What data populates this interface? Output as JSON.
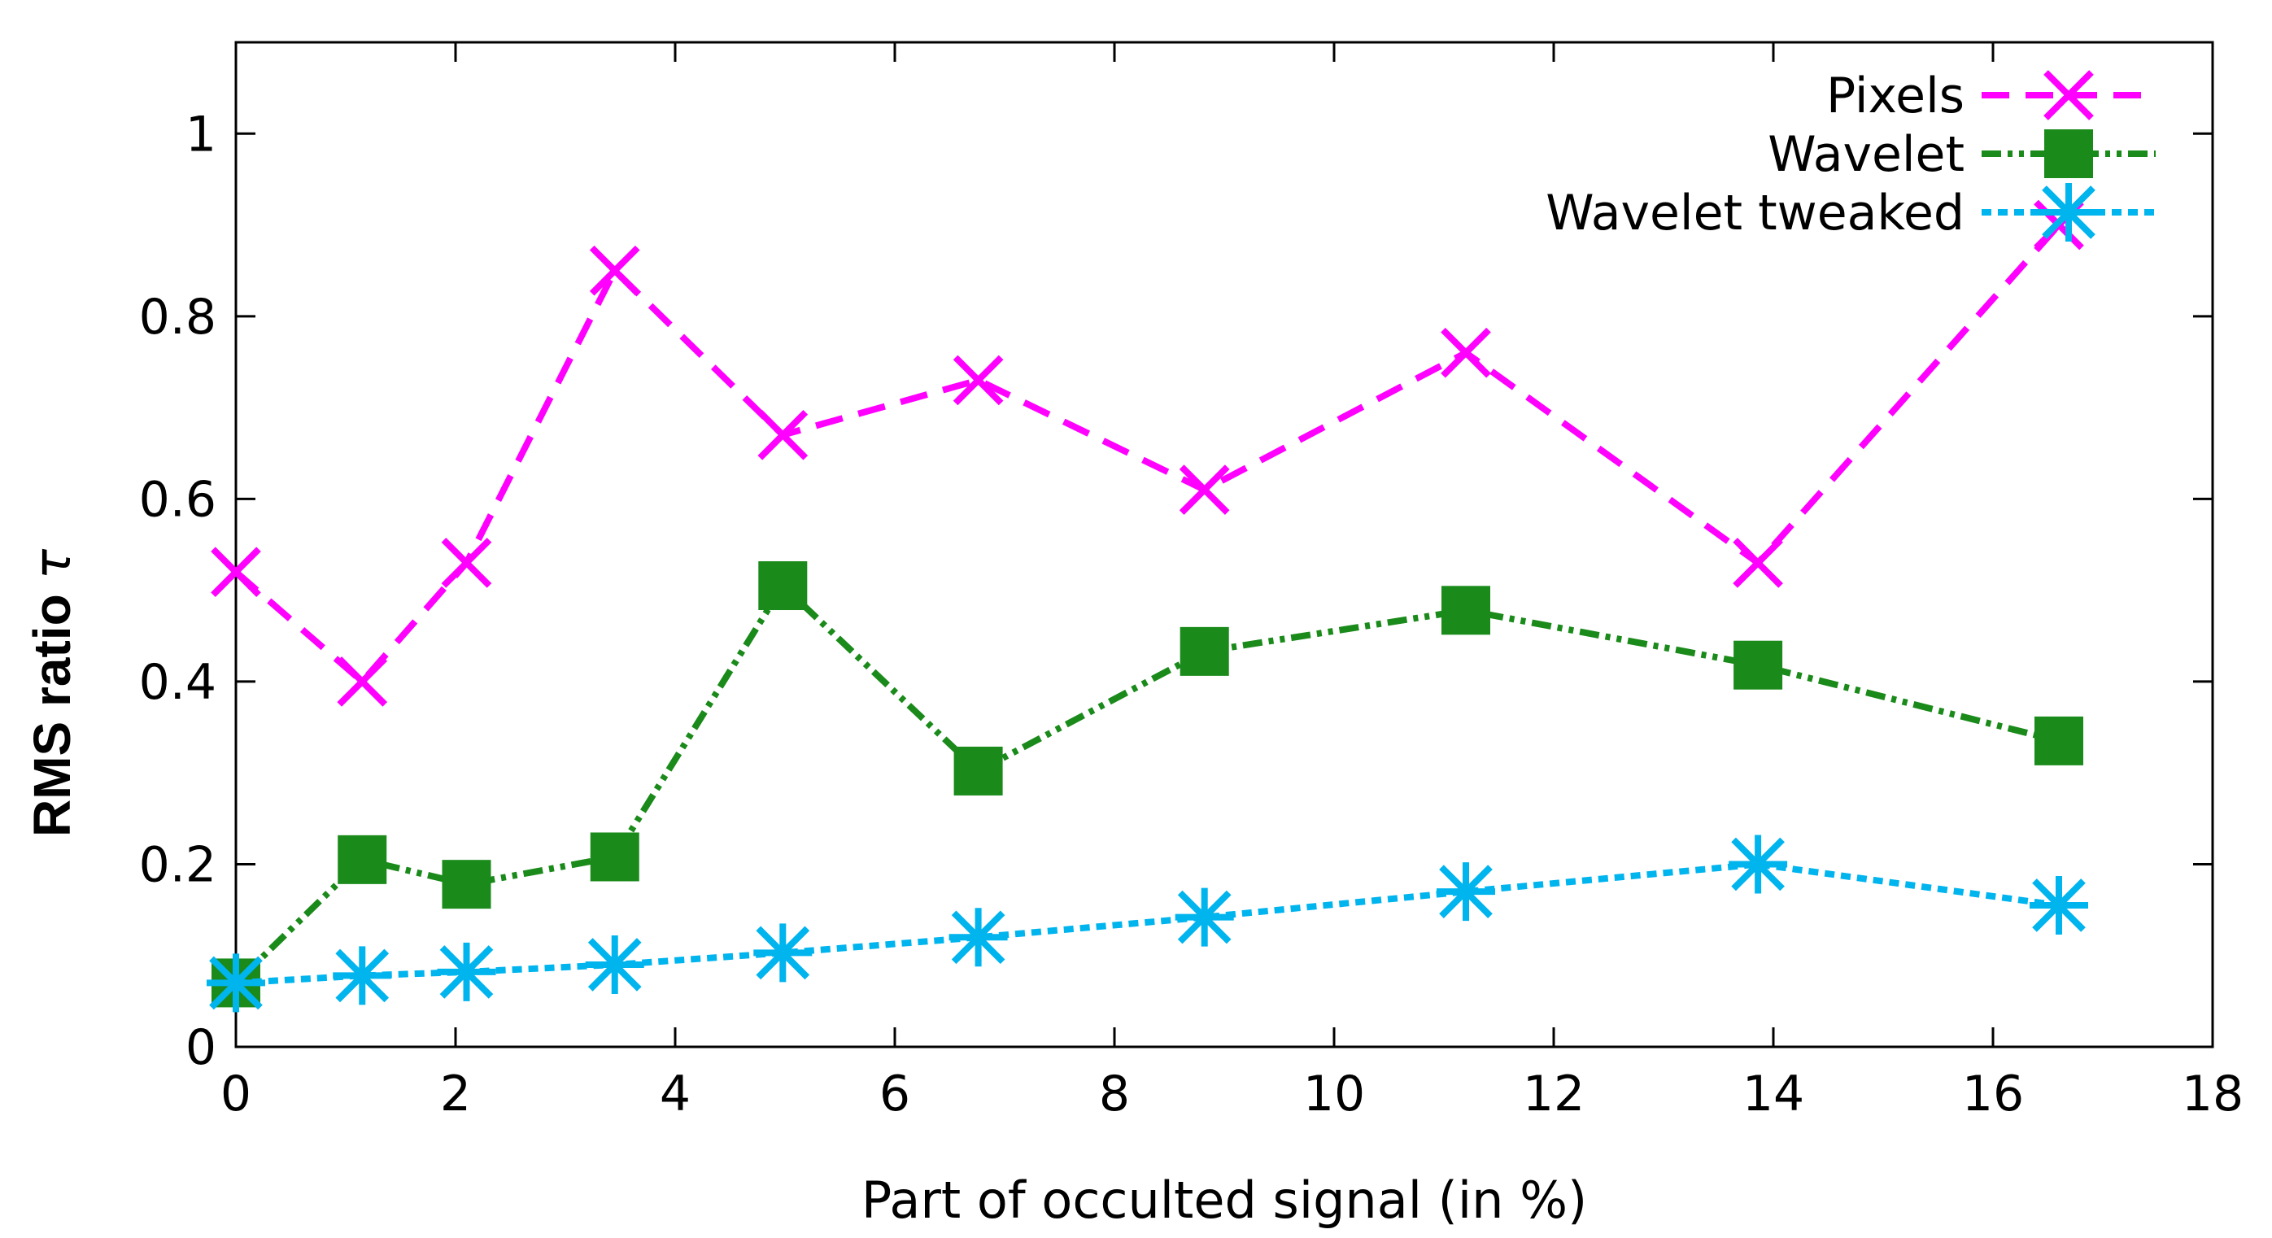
{
  "chart_data": {
    "type": "line",
    "title": "",
    "xlabel": "Part of occulted signal (in %)",
    "ylabel": "RMS ratio",
    "ylabel_symbol": "τ",
    "xlim": [
      0,
      18
    ],
    "ylim": [
      0,
      1.1
    ],
    "xticks": [
      "0",
      "2",
      "4",
      "6",
      "8",
      "10",
      "12",
      "14",
      "16",
      "18"
    ],
    "xtick_values": [
      0,
      2,
      4,
      6,
      8,
      10,
      12,
      14,
      16,
      18
    ],
    "yticks": [
      "0",
      "0.2",
      "0.4",
      "0.6",
      "0.8",
      "1"
    ],
    "ytick_values": [
      0,
      0.2,
      0.4,
      0.6,
      0.8,
      1.0
    ],
    "grid": false,
    "legend_position": "top-right",
    "series": [
      {
        "name": "Pixels",
        "color": "#ff00ff",
        "marker": "cross",
        "dash": "dashed",
        "x": [
          0,
          1.15,
          2.1,
          3.45,
          4.98,
          6.76,
          8.82,
          11.2,
          13.86,
          16.6
        ],
        "y": [
          0.52,
          0.4,
          0.53,
          0.85,
          0.67,
          0.73,
          0.61,
          0.76,
          0.53,
          0.9
        ]
      },
      {
        "name": "Wavelet",
        "color": "#1a8a1a",
        "marker": "square",
        "dash": "dashdot",
        "x": [
          0,
          1.15,
          2.1,
          3.45,
          4.98,
          6.76,
          8.82,
          11.2,
          13.86,
          16.6
        ],
        "y": [
          0.07,
          0.205,
          0.178,
          0.208,
          0.505,
          0.302,
          0.433,
          0.478,
          0.418,
          0.335
        ]
      },
      {
        "name": "Wavelet tweaked",
        "color": "#00b4ee",
        "marker": "star",
        "dash": "dotted",
        "x": [
          0,
          1.15,
          2.1,
          3.45,
          4.98,
          6.76,
          8.82,
          11.2,
          13.86,
          16.6
        ],
        "y": [
          0.07,
          0.078,
          0.082,
          0.09,
          0.103,
          0.12,
          0.142,
          0.17,
          0.2,
          0.155
        ]
      }
    ]
  }
}
